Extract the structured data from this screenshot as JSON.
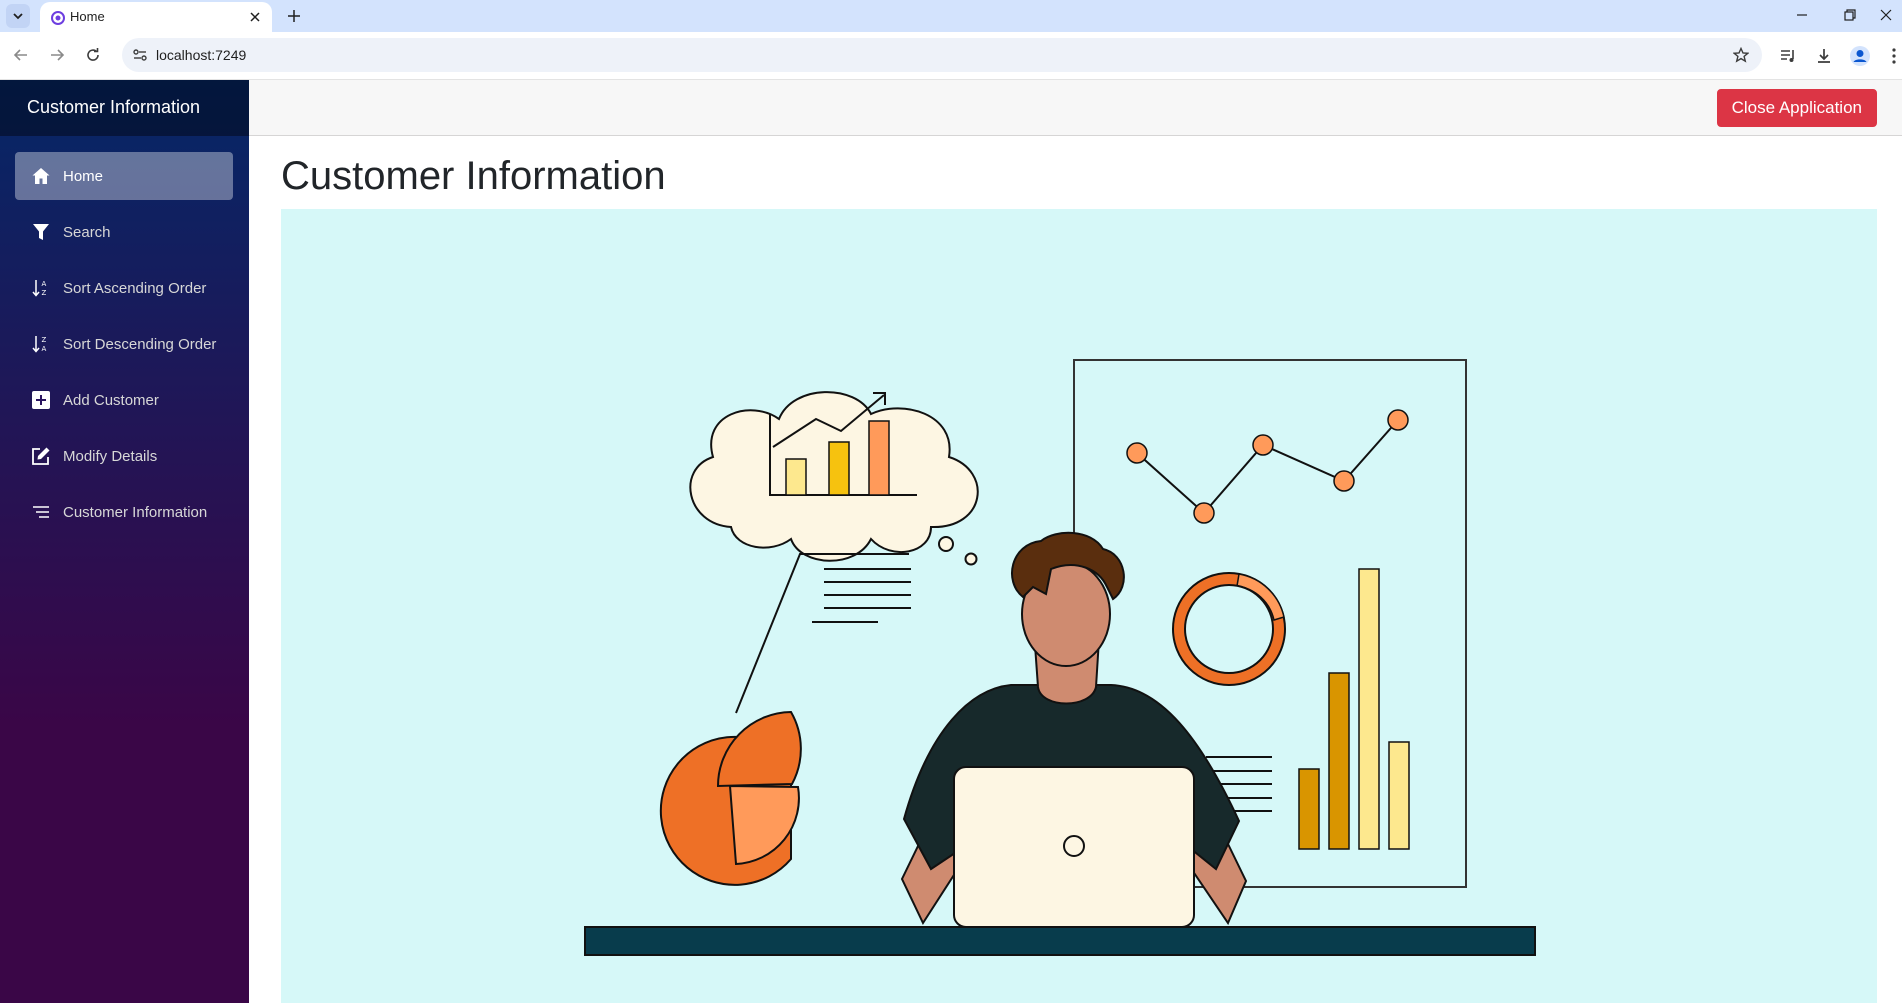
{
  "browser": {
    "tab_title": "Home",
    "url": "localhost:7249"
  },
  "sidebar": {
    "brand": "Customer Information",
    "items": [
      {
        "label": "Home",
        "icon": "home-icon",
        "active": true
      },
      {
        "label": "Search",
        "icon": "funnel-icon",
        "active": false
      },
      {
        "label": "Sort Ascending Order",
        "icon": "sort-ascending-icon",
        "active": false
      },
      {
        "label": "Sort Descending Order",
        "icon": "sort-descending-icon",
        "active": false
      },
      {
        "label": "Add Customer",
        "icon": "plus-square-icon",
        "active": false
      },
      {
        "label": "Modify Details",
        "icon": "edit-icon",
        "active": false
      },
      {
        "label": "Customer Information",
        "icon": "list-icon",
        "active": false
      }
    ]
  },
  "topbar": {
    "close_label": "Close Application"
  },
  "main": {
    "title": "Customer Information"
  },
  "colors": {
    "sidebar_top": "#052767",
    "sidebar_bottom": "#3a0647",
    "close_button": "#dc3545",
    "illustration_bg": "#d6f8f8",
    "accent_orange": "#ee7026",
    "light_orange": "#ff9a5a",
    "desk": "#083c4c"
  }
}
